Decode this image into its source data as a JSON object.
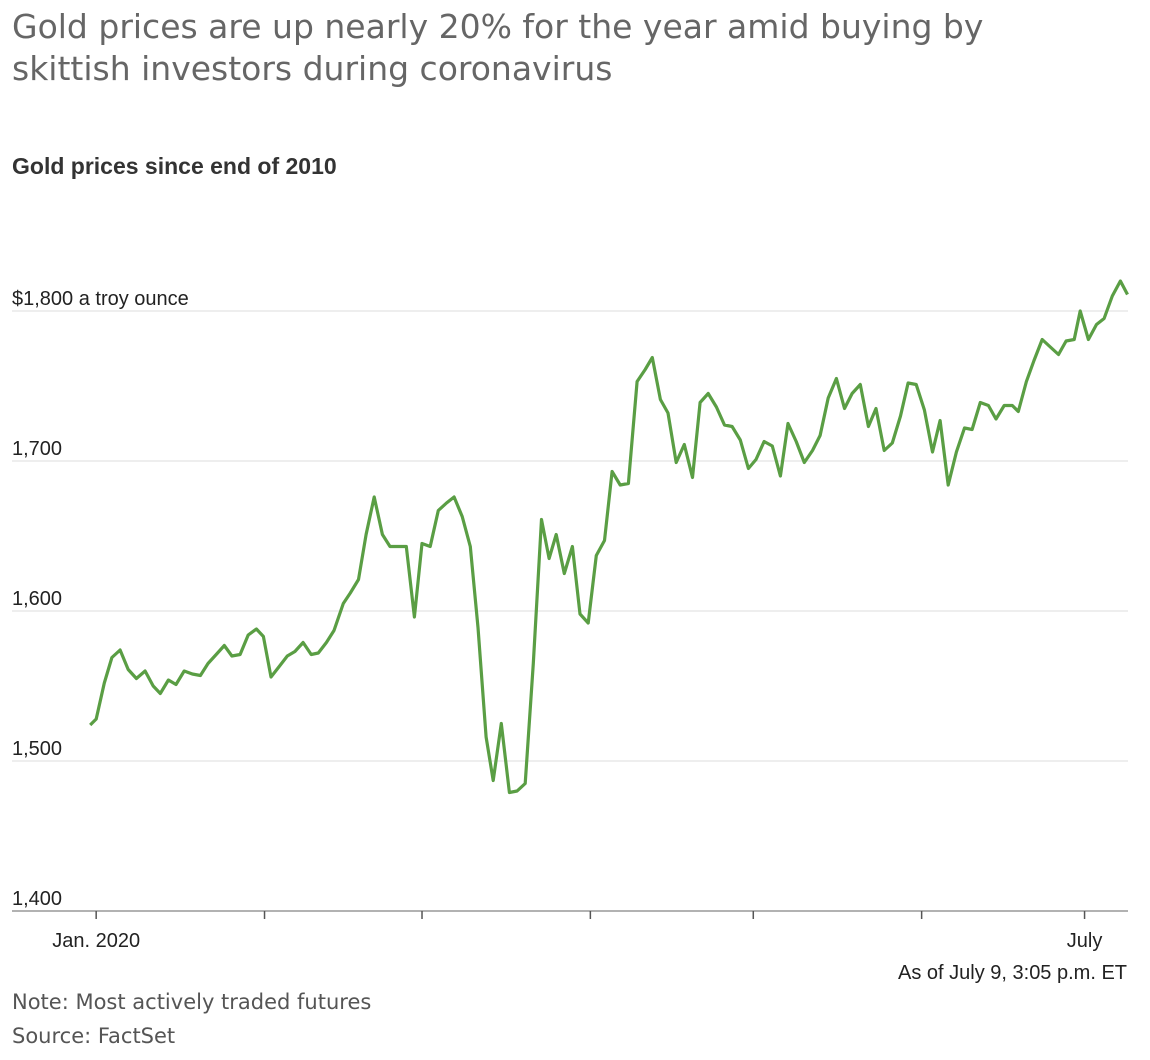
{
  "title": "Gold prices are up nearly 20% for the year amid buying by skittish investors during coronavirus",
  "chart_data": {
    "type": "line",
    "subtitle": "Gold prices since end of 2010",
    "annotation": "As of July 9, 3:05 p.m. ET",
    "note": "Note: Most actively traded futures",
    "source": "Source: FactSet",
    "x": [
      -1.1,
      0,
      1.5,
      2.9,
      4.4,
      5.9,
      7.4,
      9.0,
      10.5,
      11.8,
      13.3,
      14.7,
      16.2,
      17.7,
      19.2,
      20.6,
      22.1,
      23.6,
      25.0,
      26.5,
      28.0,
      29.5,
      30.8,
      32.2,
      33.7,
      35.2,
      36.6,
      38.1,
      39.6,
      40.9,
      42.4,
      43.8,
      45.5,
      46.8,
      48.3,
      49.7,
      51.2,
      52.7,
      54.1,
      55.6,
      57.1,
      58.6,
      60.0,
      61.5,
      63.0,
      64.5,
      65.9,
      67.4,
      68.9,
      70.3,
      71.8,
      73.1,
      74.6,
      76.1,
      77.5,
      79.0,
      80.5,
      82.0,
      83.4,
      84.7,
      86.2,
      87.7,
      89.1,
      90.6,
      92.1,
      93.6,
      95.0,
      96.5,
      98.0,
      99.6,
      101.1,
      102.4,
      103.9,
      105.3,
      106.8,
      108.3,
      109.8,
      111.2,
      112.7,
      114.2,
      115.7,
      117.1,
      118.6,
      120.1,
      121.5,
      123.0,
      124.5,
      126.0,
      127.4,
      128.9,
      130.4,
      131.9,
      133.3,
      134.8,
      136.3,
      137.8,
      139.2,
      140.7,
      142.2,
      143.6,
      145.1,
      146.6,
      148.1,
      149.5,
      151.0,
      152.5,
      154.0,
      155.4,
      156.9,
      158.4,
      159.9,
      161.3,
      162.8,
      164.3,
      165.7,
      167.2,
      168.7,
      169.8,
      171.3,
      172.7,
      174.2,
      175.7,
      177.2,
      178.6,
      180.1,
      181.2,
      182.7,
      184.2,
      185.6,
      187.1,
      188.6,
      189.9
    ],
    "series": [
      {
        "color": "#5a9e44",
        "values": [
          1524,
          1528,
          1552,
          1569,
          1574,
          1561,
          1555,
          1560,
          1550,
          1545,
          1554,
          1551,
          1560,
          1558,
          1557,
          1565,
          1571,
          1577,
          1570,
          1571,
          1584,
          1588,
          1583,
          1556,
          1563,
          1570,
          1573,
          1579,
          1571,
          1572,
          1579,
          1587,
          1605,
          1612,
          1621,
          1651,
          1676,
          1651,
          1643,
          1643,
          1643,
          1596,
          1645,
          1643,
          1667,
          1672,
          1676,
          1663,
          1643,
          1589,
          1516,
          1487,
          1525,
          1479,
          1480,
          1485,
          1565,
          1661,
          1635,
          1651,
          1625,
          1643,
          1598,
          1592,
          1637,
          1647,
          1693,
          1684,
          1685,
          1753,
          1761,
          1769,
          1741,
          1732,
          1699,
          1711,
          1689,
          1739,
          1745,
          1736,
          1724,
          1723,
          1714,
          1695,
          1701,
          1713,
          1710,
          1690,
          1725,
          1713,
          1699,
          1707,
          1717,
          1742,
          1755,
          1735,
          1745,
          1751,
          1723,
          1735,
          1707,
          1712,
          1730,
          1752,
          1751,
          1734,
          1706,
          1727,
          1684,
          1706,
          1722,
          1721,
          1739,
          1737,
          1728,
          1737,
          1737,
          1733,
          1753,
          1767,
          1781,
          1776,
          1771,
          1780,
          1781,
          1800,
          1781,
          1791,
          1795,
          1810,
          1820,
          1811
        ]
      }
    ],
    "xlim": [
      -15.5,
      190
    ],
    "xticks": [
      {
        "value": 0,
        "label": "Jan. 2020"
      },
      31,
      60,
      91,
      121,
      152,
      {
        "value": 182,
        "label": "July"
      }
    ],
    "ylim": [
      1400,
      1850
    ],
    "yticks": [
      {
        "value": 1400,
        "label": "1,400"
      },
      {
        "value": 1500,
        "label": "1,500"
      },
      {
        "value": 1600,
        "label": "1,600"
      },
      {
        "value": 1700,
        "label": "1,700"
      },
      {
        "value": 1800,
        "label": "$1,800 a troy ounce"
      }
    ],
    "grid": true
  }
}
